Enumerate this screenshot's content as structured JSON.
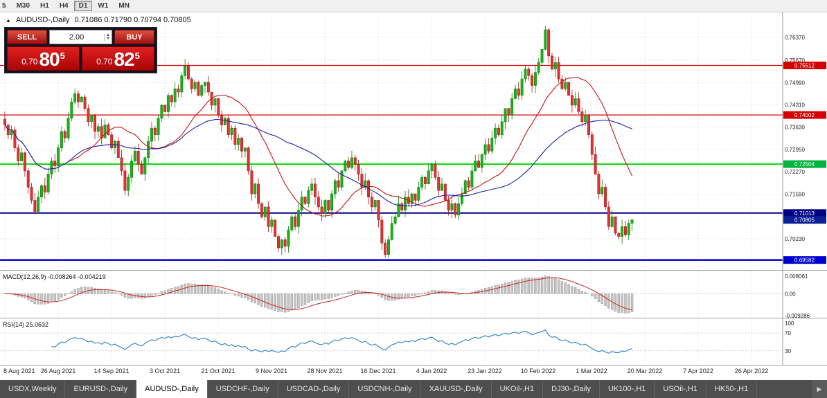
{
  "toolbar": {
    "timeframes": [
      {
        "label": "5",
        "active": false
      },
      {
        "label": "M30",
        "active": false
      },
      {
        "label": "H1",
        "active": false
      },
      {
        "label": "H4",
        "active": false
      },
      {
        "label": "D1",
        "active": true
      },
      {
        "label": "W1",
        "active": false
      },
      {
        "label": "MN",
        "active": false
      }
    ]
  },
  "icons": {
    "one_click_toggle": "▲",
    "spin_up": "▲",
    "spin_down": "▼",
    "tab_more": "▶"
  },
  "symbol_header": {
    "symbol": "AUDUSD-,Daily",
    "ohlc": "0.71086 0.71790 0.70794 0.70805"
  },
  "trade_panel": {
    "sell_label": "SELL",
    "buy_label": "BUY",
    "volume": "2.00",
    "sell_price": {
      "small": "0.70",
      "big": "80",
      "sup": "5"
    },
    "buy_price": {
      "small": "0.70",
      "big": "82",
      "sup": "5"
    }
  },
  "chart_data": {
    "type": "candlestick",
    "symbol": "AUDUSD-",
    "timeframe": "Daily",
    "current_ohlc": {
      "open": "0.71086",
      "high": "0.71790",
      "low": "0.70794",
      "close": "0.70805"
    },
    "ylim": [
      0.693,
      0.77
    ],
    "y_axis_ticks": [
      "0.76370",
      "0.75670",
      "0.74990",
      "0.74310",
      "0.73630",
      "0.72950",
      "0.72270",
      "0.71590",
      "0.70230"
    ],
    "levels": [
      {
        "price": 0.75512,
        "label": "0.75512",
        "line": "#d40000",
        "lw": 1.2,
        "bg": "#d40000"
      },
      {
        "price": 0.74002,
        "label": "0.74002",
        "line": "#d40000",
        "lw": 1.2,
        "bg": "#d40000"
      },
      {
        "price": 0.72504,
        "label": "0.72504",
        "line": "#00dc00",
        "lw": 2,
        "bg": "#00b43c"
      },
      {
        "price": 0.71013,
        "label": "0.71013",
        "line": "#000082",
        "lw": 2,
        "bg": "#000082"
      },
      {
        "price": 0.70805,
        "label": "0.70805",
        "line": null,
        "lw": 0,
        "bg": "#0a1e96"
      },
      {
        "price": 0.69582,
        "label": "0.69582",
        "line": "#0000d2",
        "lw": 2.5,
        "bg": "#0000d2"
      }
    ],
    "x_labels": [
      "8 Aug 2021",
      "26 Aug 2021",
      "14 Sep 2021",
      "3 Oct 2021",
      "21 Oct 2021",
      "9 Nov 2021",
      "28 Nov 2021",
      "16 Dec 2021",
      "4 Jan 2022",
      "23 Jan 2022",
      "10 Feb 2022",
      "1 Mar 2022",
      "20 Mar 2022",
      "7 Apr 2022",
      "26 Apr 2022"
    ],
    "candle_colors": {
      "up_fill": "#19b219",
      "up_stroke": "#0d7a0d",
      "down_fill": "#e63030",
      "down_stroke": "#9c1616"
    },
    "overlays": [
      {
        "name": "MA fast",
        "period": 20,
        "color": "#cc1111"
      },
      {
        "name": "MA slow",
        "period": 45,
        "color": "#1f1fae"
      }
    ],
    "indicators": [
      {
        "name": "MACD",
        "header": "MACD(12,26,9) -0.008264 -0.004219",
        "params": [
          12,
          26,
          9
        ],
        "axis_labels": [
          "0.008061",
          "0.00",
          "-0.009286"
        ],
        "bar_color": "#c4c4c4",
        "bar_stroke": "#8f8f8f",
        "signal_color": "#cc2222"
      },
      {
        "name": "RSI",
        "header": "RSI(14) 25.0632",
        "period": 14,
        "axis_labels": [
          "100",
          "70",
          "30"
        ],
        "levels": [
          70,
          30
        ],
        "color": "#2a7fc9"
      }
    ],
    "closes": [
      0.737,
      0.734,
      0.7355,
      0.73,
      0.726,
      0.7285,
      0.723,
      0.718,
      0.714,
      0.7106,
      0.715,
      0.7185,
      0.7165,
      0.722,
      0.726,
      0.7245,
      0.73,
      0.735,
      0.733,
      0.739,
      0.744,
      0.7465,
      0.744,
      0.7455,
      0.742,
      0.738,
      0.74,
      0.735,
      0.7365,
      0.733,
      0.737,
      0.734,
      0.73,
      0.732,
      0.727,
      0.723,
      0.717,
      0.721,
      0.726,
      0.729,
      0.725,
      0.722,
      0.727,
      0.732,
      0.736,
      0.734,
      0.739,
      0.743,
      0.741,
      0.746,
      0.744,
      0.748,
      0.747,
      0.752,
      0.755,
      0.751,
      0.748,
      0.75,
      0.746,
      0.749,
      0.75,
      0.747,
      0.743,
      0.745,
      0.74,
      0.737,
      0.739,
      0.734,
      0.736,
      0.731,
      0.733,
      0.729,
      0.73,
      0.723,
      0.716,
      0.719,
      0.713,
      0.709,
      0.712,
      0.706,
      0.708,
      0.703,
      0.6995,
      0.702,
      0.7,
      0.705,
      0.709,
      0.706,
      0.711,
      0.715,
      0.713,
      0.717,
      0.719,
      0.715,
      0.712,
      0.71,
      0.714,
      0.711,
      0.716,
      0.72,
      0.718,
      0.723,
      0.726,
      0.724,
      0.727,
      0.725,
      0.722,
      0.718,
      0.72,
      0.715,
      0.712,
      0.714,
      0.708,
      0.701,
      0.6975,
      0.702,
      0.707,
      0.709,
      0.713,
      0.711,
      0.715,
      0.713,
      0.716,
      0.714,
      0.718,
      0.721,
      0.719,
      0.723,
      0.725,
      0.721,
      0.717,
      0.719,
      0.714,
      0.711,
      0.713,
      0.7095,
      0.713,
      0.716,
      0.72,
      0.718,
      0.723,
      0.726,
      0.724,
      0.728,
      0.731,
      0.729,
      0.733,
      0.736,
      0.734,
      0.738,
      0.742,
      0.74,
      0.745,
      0.748,
      0.746,
      0.751,
      0.754,
      0.752,
      0.749,
      0.753,
      0.756,
      0.76,
      0.766,
      0.758,
      0.754,
      0.756,
      0.751,
      0.748,
      0.75,
      0.746,
      0.743,
      0.745,
      0.741,
      0.738,
      0.74,
      0.734,
      0.728,
      0.722,
      0.716,
      0.718,
      0.712,
      0.706,
      0.709,
      0.704,
      0.703,
      0.706,
      0.7035,
      0.707,
      0.70805
    ]
  },
  "tabs": {
    "items": [
      {
        "label": "USDX,Weekly",
        "active": false
      },
      {
        "label": "EURUSD-,Daily",
        "active": false
      },
      {
        "label": "AUDUSD-,Daily",
        "active": true
      },
      {
        "label": "USDCHF-,Daily",
        "active": false
      },
      {
        "label": "USDCAD-,Daily",
        "active": false
      },
      {
        "label": "USDCNH-,Daily",
        "active": false
      },
      {
        "label": "XAUUSD-,Daily",
        "active": false
      },
      {
        "label": "UKOil-,H1",
        "active": false
      },
      {
        "label": "DJ30-,Daily",
        "active": false
      },
      {
        "label": "UK100-,H1",
        "active": false
      },
      {
        "label": "USOil-,H1",
        "active": false
      },
      {
        "label": "HK50-,H1",
        "active": false
      }
    ]
  }
}
